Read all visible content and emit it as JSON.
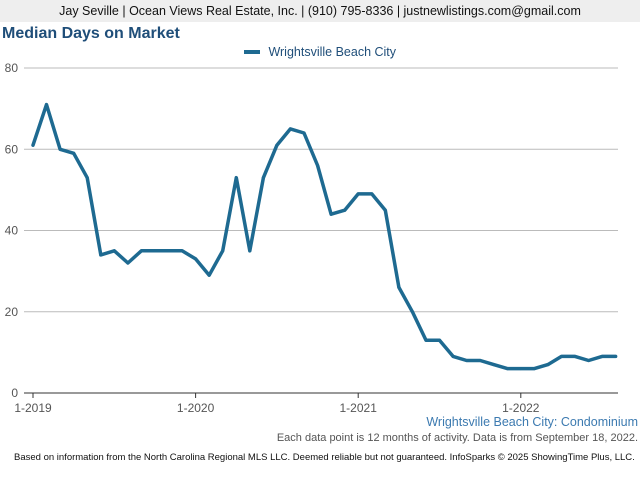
{
  "header": {
    "contact": "Jay Seville | Ocean Views Real Estate, Inc. | (910) 795-8336 | justnewlistings.com@gmail.com"
  },
  "chart_data": {
    "type": "line",
    "title": "Median Days on Market",
    "subtitle": "Wrightsville Beach City: Condominium",
    "xlabel": "",
    "ylabel": "",
    "ylim": [
      0,
      80
    ],
    "yticks": [
      0,
      20,
      40,
      60,
      80
    ],
    "x_tick_labels": [
      "1-2019",
      "1-2020",
      "1-2021",
      "1-2022"
    ],
    "x": [
      "1-2019",
      "2-2019",
      "3-2019",
      "4-2019",
      "5-2019",
      "6-2019",
      "7-2019",
      "8-2019",
      "9-2019",
      "10-2019",
      "11-2019",
      "12-2019",
      "1-2020",
      "2-2020",
      "3-2020",
      "4-2020",
      "5-2020",
      "6-2020",
      "7-2020",
      "8-2020",
      "9-2020",
      "10-2020",
      "11-2020",
      "12-2020",
      "1-2021",
      "2-2021",
      "3-2021",
      "4-2021",
      "5-2021",
      "6-2021",
      "7-2021",
      "8-2021",
      "9-2021",
      "10-2021",
      "11-2021",
      "12-2021",
      "1-2022",
      "2-2022",
      "3-2022",
      "4-2022",
      "5-2022",
      "6-2022",
      "7-2022",
      "8-2022"
    ],
    "series": [
      {
        "name": "Wrightsville Beach City",
        "color": "#1e6a91",
        "values": [
          61,
          71,
          60,
          59,
          53,
          34,
          35,
          32,
          35,
          35,
          35,
          35,
          33,
          29,
          35,
          53,
          35,
          53,
          61,
          65,
          64,
          56,
          44,
          45,
          49,
          49,
          45,
          26,
          20,
          13,
          13,
          9,
          8,
          8,
          7,
          6,
          6,
          6,
          7,
          9,
          9,
          8,
          9,
          9
        ]
      }
    ],
    "grid": true,
    "legend_position": "top-center"
  },
  "notes": {
    "activity": "Each data point is 12 months of activity. Data is from September 18, 2022."
  },
  "footer": {
    "source": "Based on information from the North Carolina Regional MLS LLC. Deemed reliable but not guaranteed. InfoSparks © 2025 ShowingTime Plus, LLC."
  }
}
